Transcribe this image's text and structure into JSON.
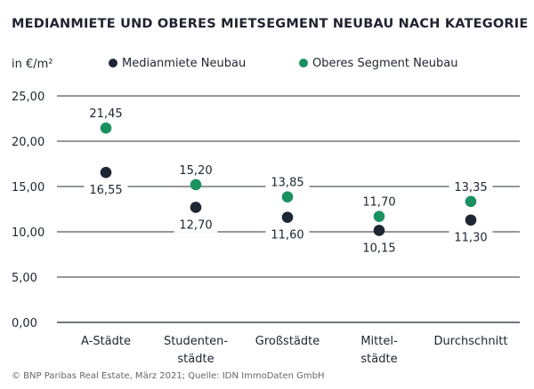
{
  "chart_data": {
    "type": "scatter",
    "title": "MEDIANMIETE UND OBERES MIETSEGMENT NEUBAU NACH KATEGORIE",
    "unit": "in €/m²",
    "categories": [
      [
        "A-Städte"
      ],
      [
        "Studenten-",
        "städte"
      ],
      [
        "Großstädte"
      ],
      [
        "Mittel-",
        "städte"
      ],
      [
        "Durchschnitt"
      ]
    ],
    "series": [
      {
        "name": "Medianmiete Neubau",
        "color": "#1e2533",
        "values": [
          16.55,
          12.7,
          11.6,
          10.15,
          11.3
        ],
        "labels": [
          "16,55",
          "12,70",
          "11,60",
          "10,15",
          "11,30"
        ]
      },
      {
        "name": "Oberes Segment Neubau",
        "color": "#1a9160",
        "values": [
          21.45,
          15.2,
          13.85,
          11.7,
          13.35
        ],
        "labels": [
          "21,45",
          "15,20",
          "13,85",
          "11,70",
          "13,35"
        ]
      }
    ],
    "yticks": [
      0,
      5,
      10,
      15,
      20,
      25
    ],
    "ytick_labels": [
      "0,00",
      "5,00",
      "10,00",
      "15,00",
      "20,00",
      "25,00"
    ],
    "ylim": [
      0,
      25
    ],
    "grid": true,
    "legend_position": "top"
  },
  "source": "© BNP Paribas Real Estate, März 2021; Quelle: IDN ImmoDaten GmbH"
}
